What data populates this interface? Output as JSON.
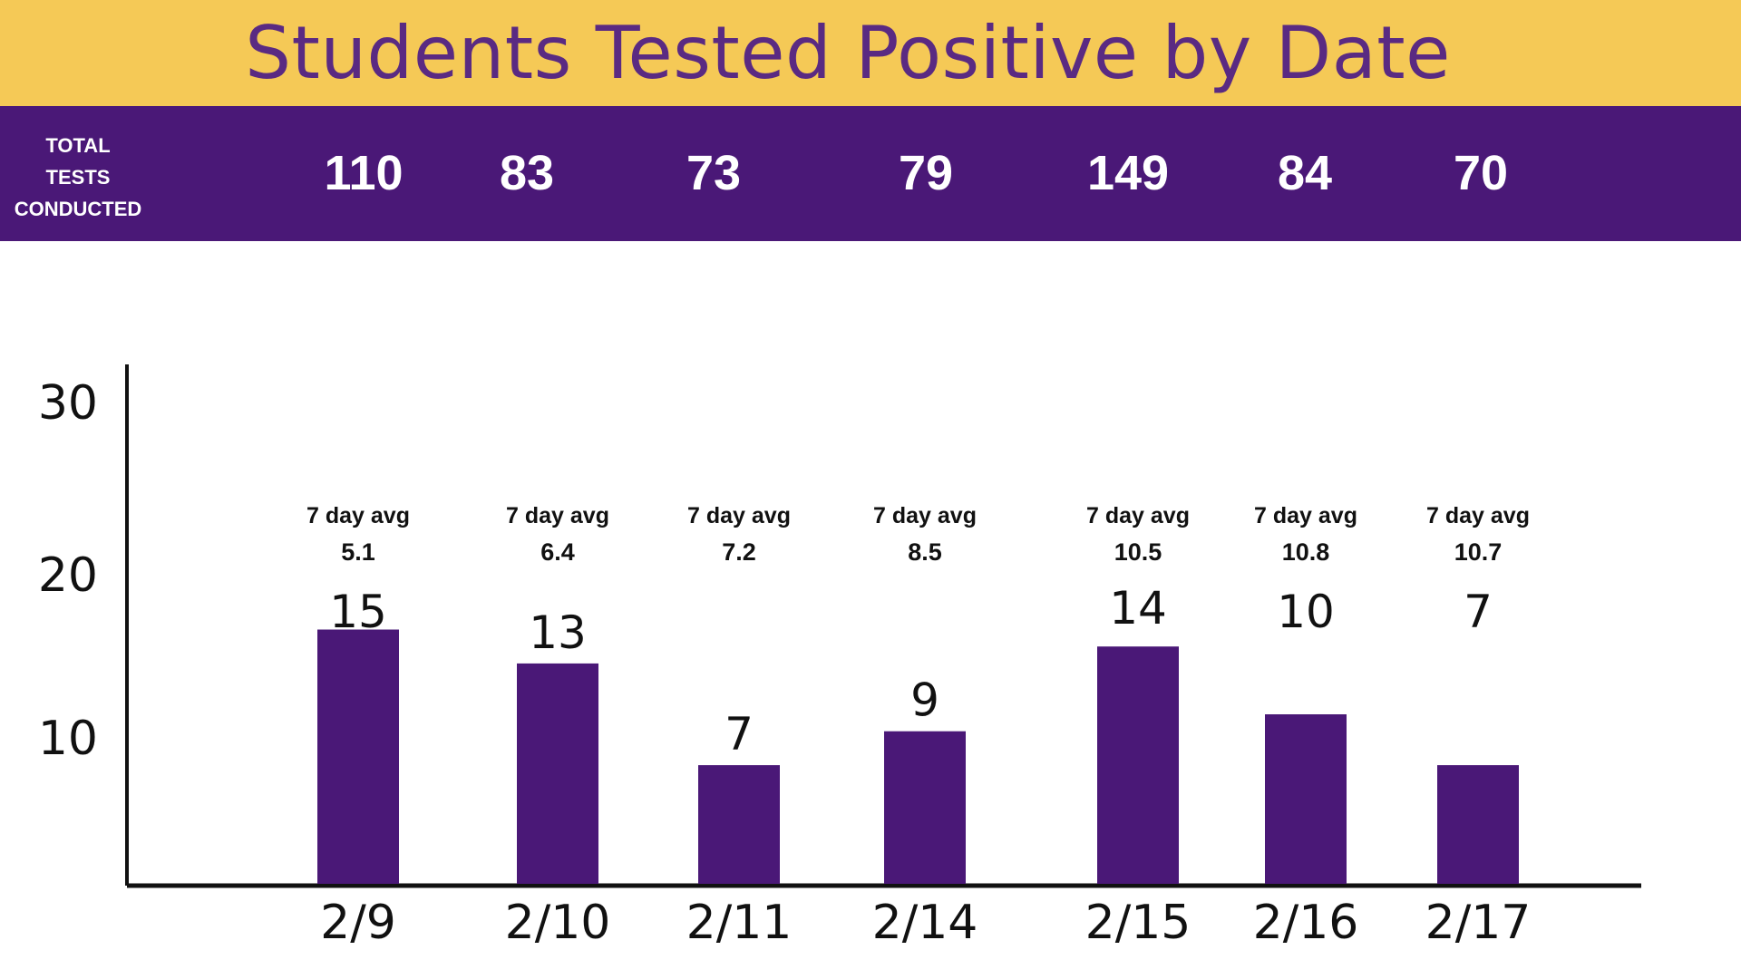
{
  "title": "Students Tested Positive by Date",
  "tests_header": {
    "label_lines": [
      "TOTAL",
      "TESTS",
      "CONDUCTED"
    ],
    "values": [
      "110",
      "83",
      "73",
      "79",
      "149",
      "84",
      "70"
    ]
  },
  "colors": {
    "title_bg": "#f5c956",
    "title_text": "#5a2a82",
    "header_bg": "#4a1877",
    "bar": "#4a1877",
    "text": "#111111"
  },
  "chart_data": {
    "type": "bar",
    "title": "Students Tested Positive by Date",
    "xlabel": "",
    "ylabel": "",
    "categories": [
      "2/9",
      "2/10",
      "2/11",
      "2/14",
      "2/15",
      "2/16",
      "2/17"
    ],
    "values": [
      15,
      13,
      7,
      9,
      14,
      10,
      7
    ],
    "avg_label": "7 day avg",
    "seven_day_avg": [
      "5.1",
      "6.4",
      "7.2",
      "8.5",
      "10.5",
      "10.8",
      "10.7"
    ],
    "yticks": [
      "10",
      "20",
      "30"
    ],
    "ylim": [
      0,
      30
    ],
    "grid": false,
    "legend": "none"
  }
}
